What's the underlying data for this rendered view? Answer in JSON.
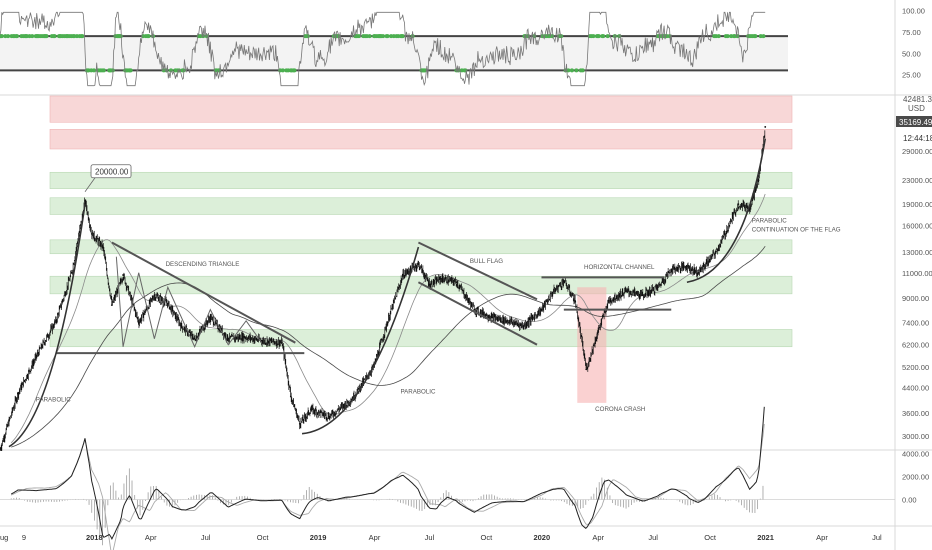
{
  "chart_data": {
    "type": "line",
    "symbol_currency": "USD",
    "price_axis": {
      "scale": "log",
      "ylim": [
        2700,
        45000
      ],
      "ticks": [
        "3000.00",
        "3600.00",
        "4400.00",
        "5200.00",
        "6200.00",
        "7400.00",
        "9000.00",
        "11000.00",
        "13000.00",
        "16000.00",
        "19000.00",
        "23000.00",
        "29000.00"
      ],
      "top_tick": "42481.30",
      "last_price": "35169.49",
      "countdown": "12:44:18"
    },
    "x_axis": {
      "ticks": [
        "Aug",
        "9",
        "2018",
        "Apr",
        "Jul",
        "Oct",
        "2019",
        "Apr",
        "Jul",
        "Oct",
        "2020",
        "Apr",
        "Jul",
        "Oct",
        "2021",
        "Apr",
        "Jul"
      ]
    },
    "rsi_panel": {
      "ticks": [
        "100.00",
        "75.00",
        "50.00",
        "25.00"
      ],
      "ylim": [
        0,
        110
      ],
      "upper_band": 70,
      "lower_band": 30
    },
    "macd_panel": {
      "ticks": [
        "4000.00",
        "2000.00",
        "0.00"
      ],
      "ylim": [
        -2200,
        4200
      ]
    },
    "series": [
      {
        "x": [
          2017.58,
          2017.66,
          2017.75,
          2017.83,
          2017.9,
          2017.96,
          2017.99,
          2018.04,
          2018.08,
          2018.13,
          2018.2,
          2018.27,
          2018.33,
          2018.39,
          2018.45,
          2018.52,
          2018.6,
          2018.67,
          2018.75,
          2018.84,
          2018.88,
          2018.92,
          2018.97,
          2019.05,
          2019.15,
          2019.25,
          2019.32,
          2019.38,
          2019.45,
          2019.5,
          2019.55,
          2019.62,
          2019.7,
          2019.78,
          2019.85,
          2019.92,
          2020.0,
          2020.05,
          2020.1,
          2020.15,
          2020.2,
          2020.25,
          2020.3,
          2020.38,
          2020.45,
          2020.52,
          2020.58,
          2020.65,
          2020.7,
          2020.78,
          2020.82,
          2020.88,
          2020.93,
          2020.97,
          2021.0
        ],
        "values": [
          2700,
          4200,
          5800,
          7500,
          11000,
          19500,
          15000,
          13500,
          8500,
          10800,
          7400,
          9200,
          8600,
          7200,
          6500,
          7700,
          6500,
          6600,
          6400,
          6300,
          4100,
          3300,
          3700,
          3500,
          4000,
          5200,
          7800,
          10800,
          11800,
          10000,
          10500,
          10200,
          8200,
          7700,
          7500,
          7200,
          8200,
          9400,
          10300,
          8800,
          5100,
          6800,
          8800,
          9500,
          9200,
          9800,
          11300,
          11600,
          11000,
          13000,
          15000,
          19000,
          18500,
          23000,
          35169
        ]
      }
    ],
    "zones": [
      {
        "low": 29500,
        "high": 34500,
        "color": "#f8d7d7"
      },
      {
        "low": 36500,
        "high": 45000,
        "color": "#f8d7d7"
      },
      {
        "low": 21500,
        "high": 24500,
        "color": "#dcefd9"
      },
      {
        "low": 17500,
        "high": 20000,
        "color": "#dcefd9"
      },
      {
        "low": 12800,
        "high": 14300,
        "color": "#dcefd9"
      },
      {
        "low": 9300,
        "high": 10700,
        "color": "#dcefd9"
      },
      {
        "low": 6100,
        "high": 7000,
        "color": "#dcefd9"
      }
    ],
    "annotations": [
      {
        "text": "20000.00",
        "x": 2017.96,
        "y": 20000
      },
      {
        "text": "DESCENDING TRIANGLE",
        "x": 2018.32,
        "y": 11600
      },
      {
        "text": "PARABOLIC",
        "x": 2017.74,
        "y": 3950
      },
      {
        "text": "PARABOLIC",
        "x": 2019.37,
        "y": 4200
      },
      {
        "text": "BULL FLAG",
        "x": 2019.68,
        "y": 11900
      },
      {
        "text": "HORIZONTAL CHANNEL",
        "x": 2020.19,
        "y": 11350
      },
      {
        "text": "CORONA CRASH",
        "x": 2020.24,
        "y": 3650
      },
      {
        "text": "PARABOLIC",
        "x": 2020.94,
        "y": 16400
      },
      {
        "text": "CONTINUATION OF THE FLAG",
        "x": 2020.94,
        "y": 15300
      }
    ],
    "colors": {
      "up": "#26a69a",
      "down": "#ef5350",
      "price_tag": "#4a4a4a",
      "crash_box": "#f6b3b3"
    }
  }
}
